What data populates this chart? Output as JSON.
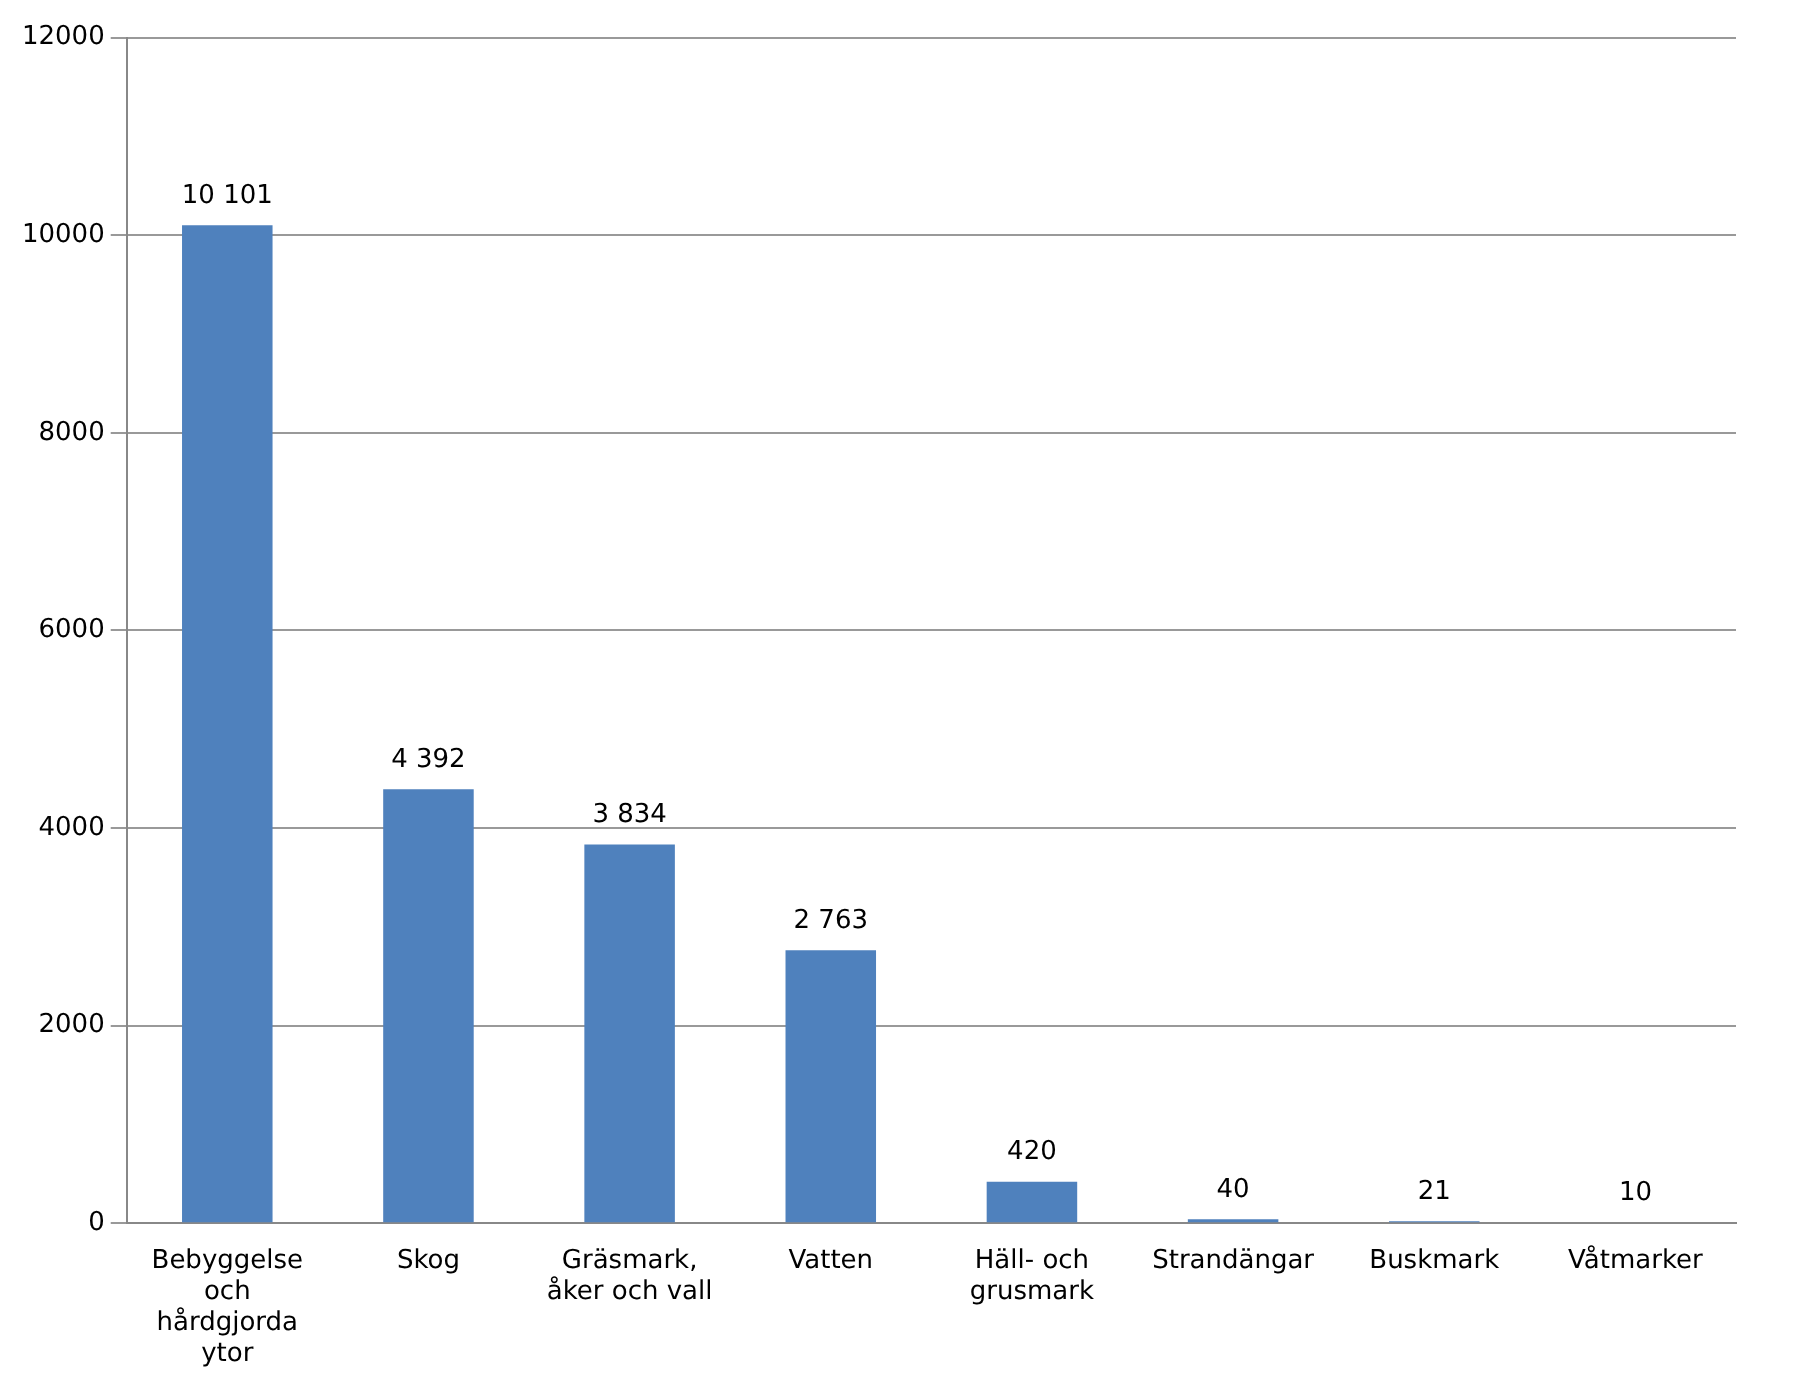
{
  "chart_data": {
    "type": "bar",
    "categories": [
      "Bebyggelse och hårdgjorda ytor",
      "Skog",
      "Gräsmark, åker och vall",
      "Vatten",
      "Häll- och grusmark",
      "Strandängar",
      "Buskmark",
      "Våtmarker"
    ],
    "values": [
      10101,
      4392,
      3834,
      2763,
      420,
      40,
      21,
      10
    ],
    "value_labels": [
      "10 101",
      "4 392",
      "3 834",
      "2 763",
      "420",
      "40",
      "21",
      "10"
    ],
    "color": "#4f81bd",
    "ylim": [
      0,
      12000
    ],
    "yticks": [
      0,
      2000,
      4000,
      6000,
      8000,
      10000,
      12000
    ],
    "grid": "y",
    "legend": false
  }
}
